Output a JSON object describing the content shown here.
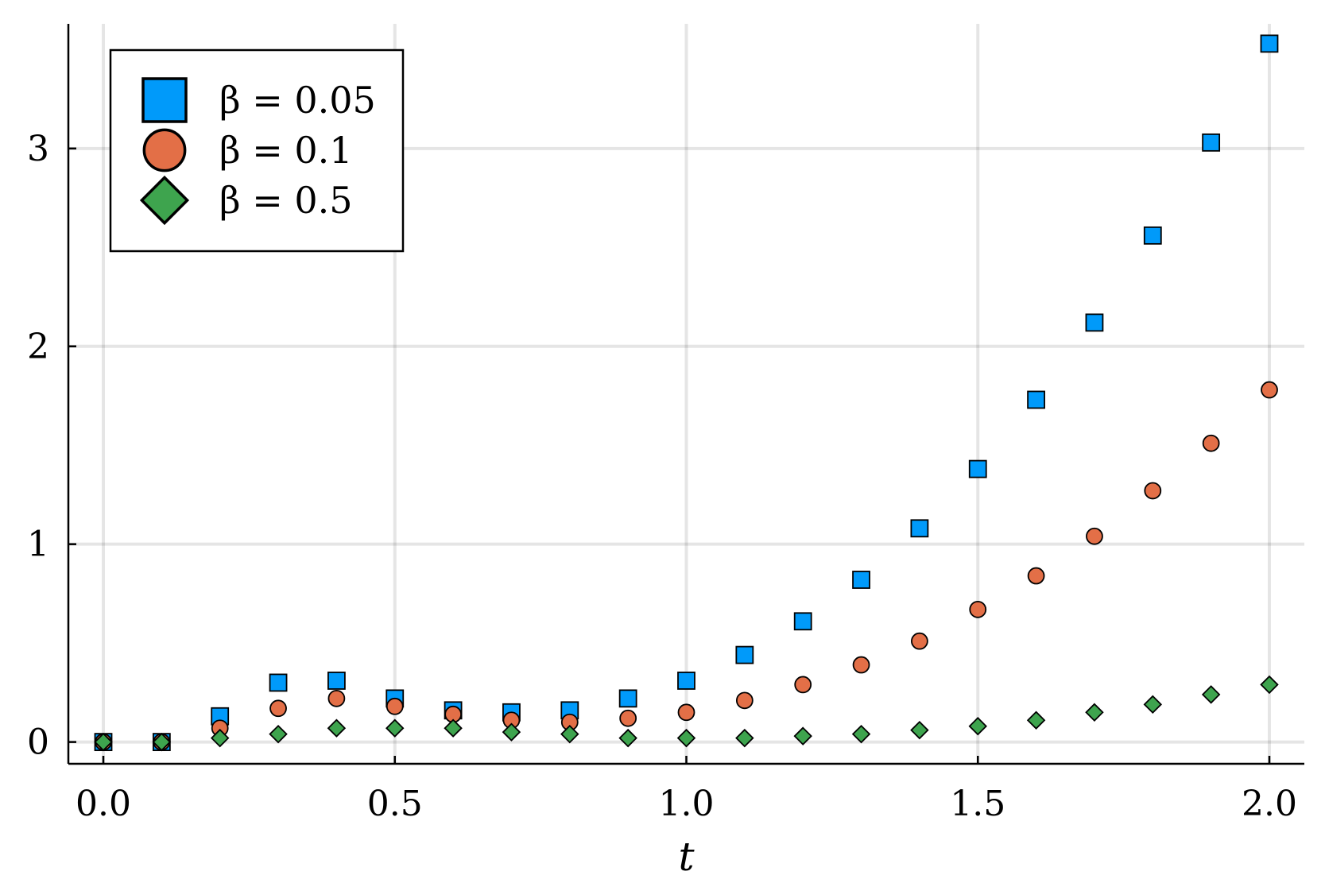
{
  "chart_data": {
    "type": "scatter",
    "xlabel": "t",
    "ylabel": "",
    "xlim": [
      -0.06,
      2.06
    ],
    "ylim": [
      -0.11,
      3.63
    ],
    "xticks": [
      0.0,
      0.5,
      1.0,
      1.5,
      2.0
    ],
    "xtick_labels": [
      "0.0",
      "0.5",
      "1.0",
      "1.5",
      "2.0"
    ],
    "yticks": [
      0,
      1,
      2,
      3
    ],
    "ytick_labels": [
      "0",
      "1",
      "2",
      "3"
    ],
    "grid": true,
    "legend_position": "top-left",
    "x": [
      0.0,
      0.1,
      0.2,
      0.3,
      0.4,
      0.5,
      0.6,
      0.7,
      0.8,
      0.9,
      1.0,
      1.1,
      1.2,
      1.3,
      1.4,
      1.5,
      1.6,
      1.7,
      1.8,
      1.9,
      2.0
    ],
    "series": [
      {
        "name": "β = 0.05",
        "marker": "square",
        "color": "#009AFA",
        "values": [
          0.0,
          0.0,
          0.13,
          0.3,
          0.31,
          0.22,
          0.16,
          0.15,
          0.16,
          0.22,
          0.31,
          0.44,
          0.61,
          0.82,
          1.08,
          1.38,
          1.73,
          2.12,
          2.56,
          3.03,
          3.53
        ]
      },
      {
        "name": "β = 0.1",
        "marker": "circle",
        "color": "#E36F47",
        "values": [
          0.0,
          0.0,
          0.07,
          0.17,
          0.22,
          0.18,
          0.14,
          0.11,
          0.1,
          0.12,
          0.15,
          0.21,
          0.29,
          0.39,
          0.51,
          0.67,
          0.84,
          1.04,
          1.27,
          1.51,
          1.78
        ]
      },
      {
        "name": "β = 0.5",
        "marker": "diamond",
        "color": "#3EA44E",
        "values": [
          0.0,
          0.0,
          0.02,
          0.04,
          0.07,
          0.07,
          0.07,
          0.05,
          0.04,
          0.02,
          0.02,
          0.02,
          0.03,
          0.04,
          0.06,
          0.08,
          0.11,
          0.15,
          0.19,
          0.24,
          0.29
        ]
      }
    ]
  }
}
